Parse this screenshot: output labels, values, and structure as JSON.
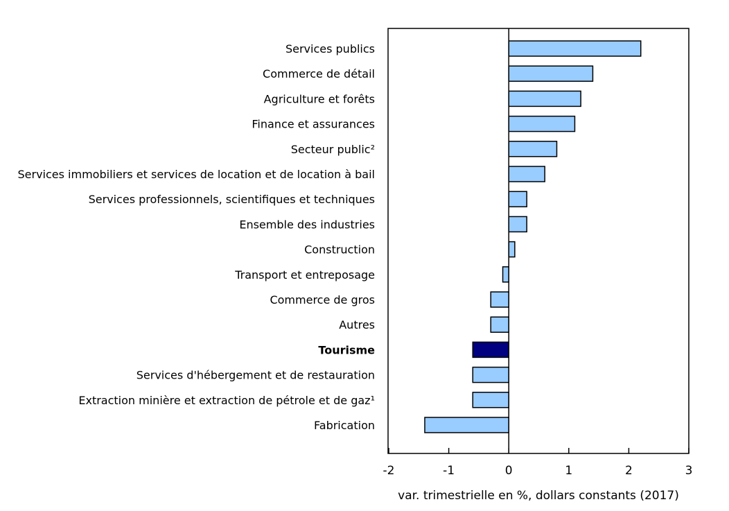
{
  "chart_data": {
    "type": "bar",
    "orientation": "horizontal",
    "categories": [
      "Services publics",
      "Commerce de détail",
      "Agriculture et forêts",
      "Finance et assurances",
      "Secteur public²",
      "Services immobiliers et services de location et de location à bail",
      "Services professionnels, scientifiques et techniques",
      "Ensemble des industries",
      "Construction",
      "Transport et entreposage",
      "Commerce de gros",
      "Autres",
      "Tourisme",
      "Services d'hébergement et de restauration",
      "Extraction minière et extraction de pétrole et de gaz¹",
      "Fabrication"
    ],
    "values": [
      2.2,
      1.4,
      1.2,
      1.1,
      0.8,
      0.6,
      0.3,
      0.3,
      0.1,
      -0.1,
      -0.3,
      -0.3,
      -0.6,
      -0.6,
      -0.6,
      -1.4
    ],
    "highlight": "Tourisme",
    "xlabel": "var. trimestrielle en %, dollars constants (2017)",
    "xlim": [
      -2,
      3
    ],
    "xticks": [
      "-2",
      "-1",
      "0",
      "1",
      "2",
      "3"
    ],
    "grid": false,
    "colors": {
      "bar": "#99ccff",
      "highlight": "#000080",
      "outline": "#000000"
    }
  }
}
